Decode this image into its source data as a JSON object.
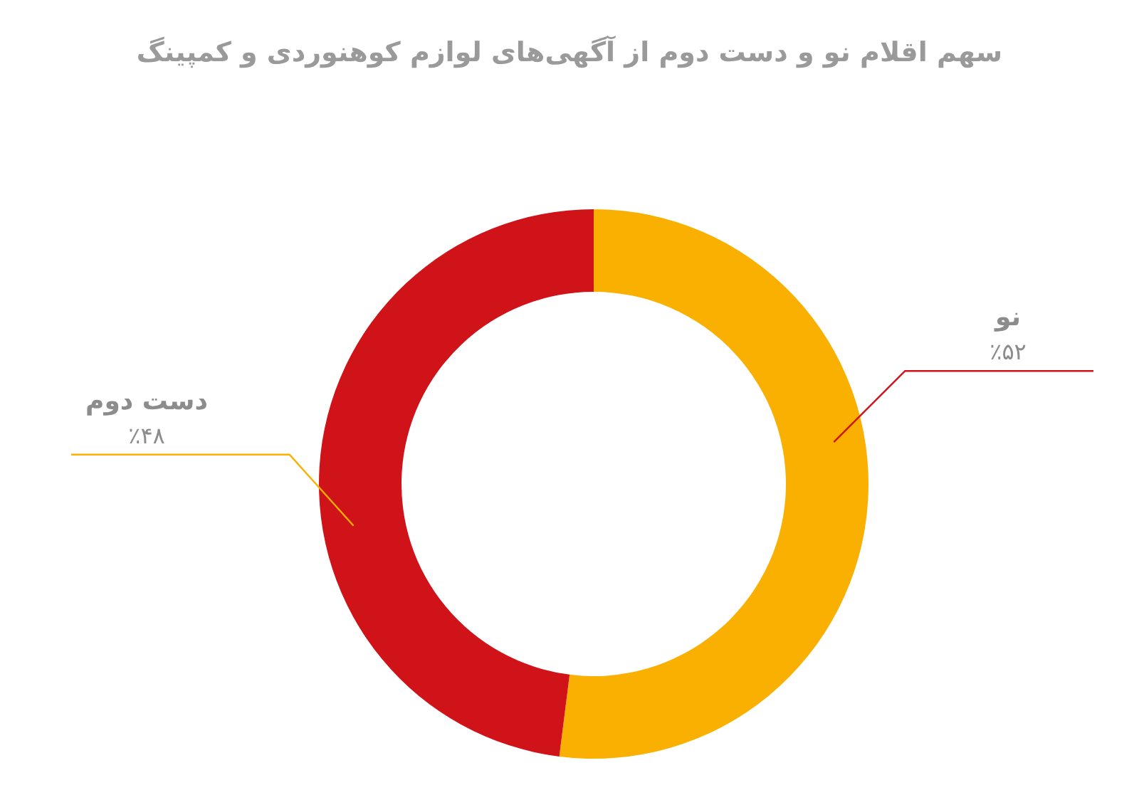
{
  "chart_data": {
    "type": "donut",
    "title": "سهم اقلام نو و دست دوم از آگهی‌های لوازم کوهنوردی و کمپینگ",
    "categories": [
      "نو",
      "دست دوم"
    ],
    "values": [
      52,
      48
    ],
    "value_labels": [
      "٪۵۲",
      "٪۴۸"
    ],
    "colors": [
      "#f9b000",
      "#d01319"
    ]
  }
}
